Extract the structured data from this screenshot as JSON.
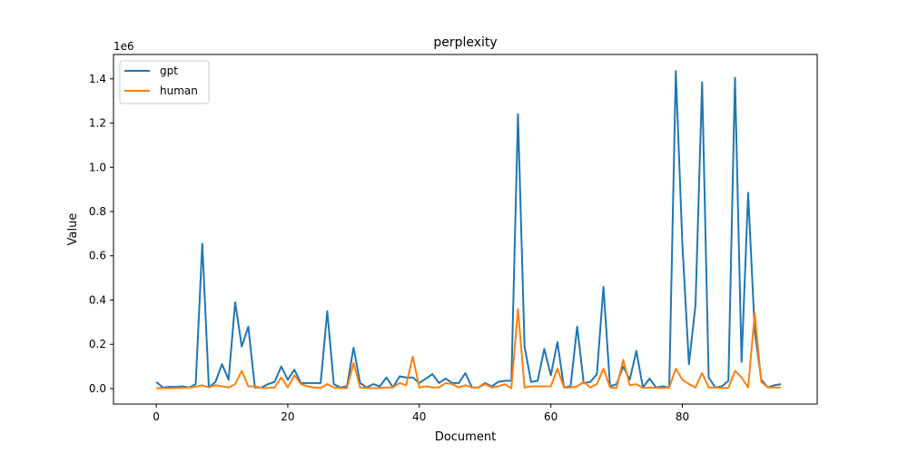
{
  "chart_data": {
    "type": "line",
    "title": "perplexity",
    "xlabel": "Document",
    "ylabel": "Value",
    "y_scale_label": "1e6",
    "xlim": [
      -6.5,
      100.5
    ],
    "ylim": [
      -0.07,
      1.51
    ],
    "x_ticks": [
      0,
      20,
      40,
      60,
      80
    ],
    "y_ticks": [
      0.0,
      0.2,
      0.4,
      0.6,
      0.8,
      1.0,
      1.2,
      1.4
    ],
    "y_tick_labels": [
      "0.0",
      "0.2",
      "0.4",
      "0.6",
      "0.8",
      "1.0",
      "1.2",
      "1.4"
    ],
    "legend_position": "top-left",
    "grid": false,
    "series": [
      {
        "name": "gpt",
        "color": "#1f77b4",
        "values": [
          0.03,
          0.005,
          0.008,
          0.008,
          0.01,
          0.005,
          0.02,
          0.655,
          0.005,
          0.03,
          0.11,
          0.04,
          0.39,
          0.19,
          0.28,
          0.005,
          0.005,
          0.02,
          0.03,
          0.1,
          0.04,
          0.085,
          0.025,
          0.025,
          0.025,
          0.025,
          0.35,
          0.02,
          0.005,
          0.01,
          0.185,
          0.025,
          0.005,
          0.02,
          0.01,
          0.05,
          0.005,
          0.055,
          0.05,
          0.05,
          0.025,
          0.045,
          0.065,
          0.025,
          0.045,
          0.025,
          0.025,
          0.07,
          0.005,
          0.005,
          0.025,
          0.01,
          0.03,
          0.035,
          0.035,
          1.24,
          0.19,
          0.03,
          0.035,
          0.18,
          0.06,
          0.21,
          0.005,
          0.01,
          0.28,
          0.025,
          0.03,
          0.065,
          0.46,
          0.01,
          0.02,
          0.1,
          0.04,
          0.17,
          0.005,
          0.045,
          0.005,
          0.01,
          0.005,
          1.435,
          0.65,
          0.11,
          0.38,
          1.385,
          0.05,
          0.005,
          0.01,
          0.035,
          1.405,
          0.12,
          0.885,
          0.26,
          0.04,
          0.005,
          0.015,
          0.02
        ]
      },
      {
        "name": "human",
        "color": "#ff7f0e",
        "values": [
          0.002,
          0.002,
          0.002,
          0.003,
          0.003,
          0.005,
          0.008,
          0.015,
          0.005,
          0.015,
          0.01,
          0.005,
          0.02,
          0.08,
          0.01,
          0.01,
          0.003,
          0.003,
          0.005,
          0.05,
          0.005,
          0.06,
          0.02,
          0.01,
          0.005,
          0.003,
          0.02,
          0.005,
          0.002,
          0.002,
          0.115,
          0.005,
          0.003,
          0.002,
          0.003,
          0.005,
          0.005,
          0.025,
          0.015,
          0.145,
          0.005,
          0.01,
          0.005,
          0.005,
          0.025,
          0.02,
          0.005,
          0.015,
          0.005,
          0.005,
          0.02,
          0.005,
          0.01,
          0.02,
          0.002,
          0.36,
          0.005,
          0.01,
          0.01,
          0.01,
          0.01,
          0.09,
          0.005,
          0.005,
          0.01,
          0.03,
          0.005,
          0.02,
          0.09,
          0.005,
          0.003,
          0.13,
          0.015,
          0.02,
          0.003,
          0.005,
          0.003,
          0.003,
          0.005,
          0.09,
          0.04,
          0.02,
          0.005,
          0.07,
          0.005,
          0.005,
          0.003,
          0.003,
          0.08,
          0.05,
          0.005,
          0.34,
          0.03,
          0.005,
          0.005,
          0.005
        ]
      }
    ]
  }
}
